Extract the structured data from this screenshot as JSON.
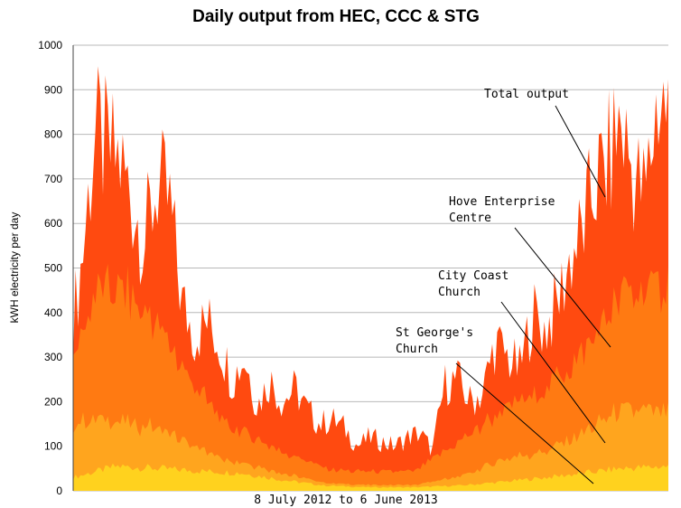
{
  "chart_data": {
    "type": "area",
    "title": "Daily output from HEC, CCC & STG",
    "xlabel": "8 July 2012 to 6 June 2013",
    "ylabel": "kWH electricity per day",
    "ylim": [
      0,
      1000
    ],
    "yticks": [
      0,
      100,
      200,
      300,
      400,
      500,
      600,
      700,
      800,
      900,
      1000
    ],
    "grid": true,
    "x_start": "2012-07-08",
    "x_end": "2013-06-06",
    "stacking": "stacked",
    "colors": {
      "st_georges": "#ffd21e",
      "city_coast": "#ffa51e",
      "hove_enterprise": "#ff7a12",
      "total_top": "#ff4a10"
    },
    "series": [
      {
        "name": "St George's Church",
        "color": "#ffd21e",
        "points": [
          [
            "2012-07-08",
            30
          ],
          [
            "2012-08-01",
            55
          ],
          [
            "2012-08-25",
            50
          ],
          [
            "2012-09-15",
            45
          ],
          [
            "2012-10-10",
            40
          ],
          [
            "2012-11-01",
            25
          ],
          [
            "2012-11-25",
            12
          ],
          [
            "2012-12-20",
            8
          ],
          [
            "2013-01-15",
            8
          ],
          [
            "2013-02-10",
            12
          ],
          [
            "2013-03-05",
            20
          ],
          [
            "2013-03-30",
            30
          ],
          [
            "2013-04-20",
            40
          ],
          [
            "2013-05-10",
            50
          ],
          [
            "2013-06-06",
            55
          ]
        ]
      },
      {
        "name": "City Coast Church",
        "color": "#ffa51e",
        "points": [
          [
            "2012-07-08",
            120
          ],
          [
            "2012-07-12",
            125
          ],
          [
            "2012-08-01",
            100
          ],
          [
            "2012-08-20",
            95
          ],
          [
            "2012-09-10",
            60
          ],
          [
            "2012-10-01",
            30
          ],
          [
            "2012-11-01",
            15
          ],
          [
            "2012-12-01",
            5
          ],
          [
            "2013-01-15",
            5
          ],
          [
            "2013-02-10",
            20
          ],
          [
            "2013-03-05",
            50
          ],
          [
            "2013-03-30",
            60
          ],
          [
            "2013-04-20",
            90
          ],
          [
            "2013-05-10",
            130
          ],
          [
            "2013-06-06",
            120
          ]
        ]
      },
      {
        "name": "Hove Enterprise Centre",
        "color": "#ff7a12",
        "points": [
          [
            "2012-07-08",
            150
          ],
          [
            "2012-07-20",
            280
          ],
          [
            "2012-08-01",
            300
          ],
          [
            "2012-08-20",
            250
          ],
          [
            "2012-09-10",
            150
          ],
          [
            "2012-10-01",
            80
          ],
          [
            "2012-11-01",
            50
          ],
          [
            "2012-12-01",
            30
          ],
          [
            "2013-01-15",
            30
          ],
          [
            "2013-02-10",
            80
          ],
          [
            "2013-03-05",
            110
          ],
          [
            "2013-03-30",
            140
          ],
          [
            "2013-04-20",
            180
          ],
          [
            "2013-05-10",
            250
          ],
          [
            "2013-06-06",
            280
          ]
        ]
      }
    ],
    "total_output": {
      "name": "Total output",
      "color": "#ff4a10",
      "points": [
        [
          "2012-07-08",
          380
        ],
        [
          "2012-07-13",
          520
        ],
        [
          "2012-07-20",
          800
        ],
        [
          "2012-07-27",
          760
        ],
        [
          "2012-08-03",
          740
        ],
        [
          "2012-08-10",
          650
        ],
        [
          "2012-08-17",
          560
        ],
        [
          "2012-08-24",
          690
        ],
        [
          "2012-08-31",
          640
        ],
        [
          "2012-09-07",
          420
        ],
        [
          "2012-09-14",
          350
        ],
        [
          "2012-09-21",
          380
        ],
        [
          "2012-09-28",
          330
        ],
        [
          "2012-10-05",
          250
        ],
        [
          "2012-10-12",
          300
        ],
        [
          "2012-10-19",
          190
        ],
        [
          "2012-10-26",
          250
        ],
        [
          "2012-11-02",
          200
        ],
        [
          "2012-11-09",
          230
        ],
        [
          "2012-11-16",
          180
        ],
        [
          "2012-11-23",
          150
        ],
        [
          "2012-11-30",
          160
        ],
        [
          "2012-12-07",
          140
        ],
        [
          "2012-12-14",
          100
        ],
        [
          "2012-12-21",
          120
        ],
        [
          "2012-12-28",
          110
        ],
        [
          "2013-01-04",
          100
        ],
        [
          "2013-01-11",
          120
        ],
        [
          "2013-01-18",
          130
        ],
        [
          "2013-01-25",
          90
        ],
        [
          "2013-02-01",
          240
        ],
        [
          "2013-02-08",
          250
        ],
        [
          "2013-02-15",
          200
        ],
        [
          "2013-02-22",
          220
        ],
        [
          "2013-03-01",
          330
        ],
        [
          "2013-03-08",
          300
        ],
        [
          "2013-03-15",
          270
        ],
        [
          "2013-03-22",
          400
        ],
        [
          "2013-03-29",
          360
        ],
        [
          "2013-04-05",
          420
        ],
        [
          "2013-04-12",
          520
        ],
        [
          "2013-04-19",
          580
        ],
        [
          "2013-04-26",
          690
        ],
        [
          "2013-05-03",
          730
        ],
        [
          "2013-05-10",
          830
        ],
        [
          "2013-05-17",
          720
        ],
        [
          "2013-05-24",
          660
        ],
        [
          "2013-05-31",
          880
        ],
        [
          "2013-06-06",
          860
        ]
      ]
    },
    "annotations": [
      {
        "id": "total",
        "lines": [
          "Total output"
        ]
      },
      {
        "id": "hec",
        "lines": [
          "Hove Enterprise",
          "Centre"
        ]
      },
      {
        "id": "ccc",
        "lines": [
          "City Coast",
          "Church"
        ]
      },
      {
        "id": "stg",
        "lines": [
          "St George's",
          "Church"
        ]
      }
    ]
  }
}
